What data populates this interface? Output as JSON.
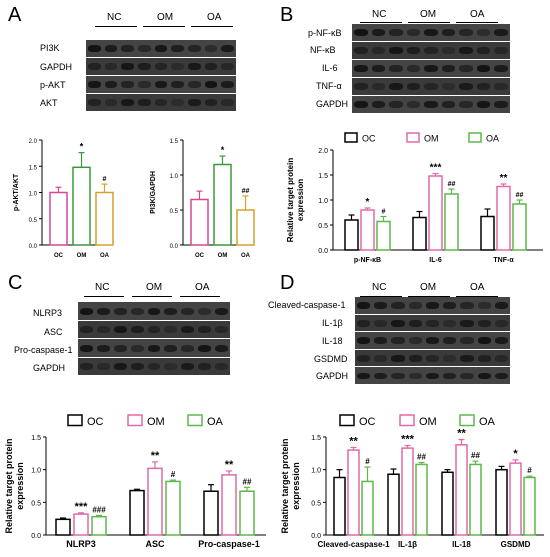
{
  "panels": {
    "A": {
      "letter": "A",
      "groups": [
        "NC",
        "OM",
        "OA"
      ],
      "rows": [
        "PI3K",
        "GAPDH",
        "p-AKT",
        "AKT"
      ]
    },
    "B": {
      "letter": "B",
      "groups": [
        "NC",
        "OM",
        "OA"
      ],
      "rows": [
        "p-NF-κB",
        "NF-κB",
        "IL-6",
        "TNF-α",
        "GAPDH"
      ]
    },
    "C": {
      "letter": "C",
      "groups": [
        "NC",
        "OM",
        "OA"
      ],
      "rows": [
        "NLRP3",
        "ASC",
        "Pro-caspase-1",
        "GAPDH"
      ]
    },
    "D": {
      "letter": "D",
      "groups": [
        "NC",
        "OM",
        "OA"
      ],
      "rows": [
        "Cleaved-caspase-1",
        "IL-1β",
        "IL-18",
        "GSDMD",
        "GAPDH"
      ]
    }
  },
  "chart_data": [
    {
      "id": "A1",
      "type": "bar",
      "categories": [
        "OC",
        "OM",
        "OA"
      ],
      "values": [
        1.0,
        1.48,
        1.0
      ],
      "errors": [
        0.1,
        0.28,
        0.16
      ],
      "significance": [
        "",
        "*",
        "#"
      ],
      "colors": [
        "#d14b8f",
        "#3a9a3a",
        "#d4a12a"
      ],
      "ylabel": "p-AKT/AKT",
      "ylim": [
        0,
        2.0
      ],
      "yticks": [
        "0.0",
        "0.5",
        "1.0",
        "1.5",
        "2.0"
      ]
    },
    {
      "id": "A2",
      "type": "bar",
      "categories": [
        "OC",
        "OM",
        "OA"
      ],
      "values": [
        0.65,
        1.15,
        0.5
      ],
      "errors": [
        0.12,
        0.12,
        0.2
      ],
      "significance": [
        "",
        "*",
        "##"
      ],
      "colors": [
        "#d14b8f",
        "#3a9a3a",
        "#d4a12a"
      ],
      "ylabel": "PI3K/GAPDH",
      "ylim": [
        0,
        1.5
      ],
      "yticks": [
        "0.0",
        "0.5",
        "1.0",
        "1.5"
      ]
    },
    {
      "id": "B",
      "type": "bar",
      "categories": [
        "p-NF-κB",
        "IL-6",
        "TNF-α"
      ],
      "series": [
        {
          "name": "OC",
          "color": "#000000",
          "values": [
            0.6,
            0.65,
            0.67
          ],
          "errors": [
            0.1,
            0.12,
            0.15
          ],
          "significance": [
            "",
            "",
            ""
          ]
        },
        {
          "name": "OM",
          "color": "#e06aa8",
          "values": [
            0.8,
            1.48,
            1.27
          ],
          "errors": [
            0.04,
            0.05,
            0.05
          ],
          "significance": [
            "*",
            "***",
            "**"
          ]
        },
        {
          "name": "OA",
          "color": "#5db84a",
          "values": [
            0.57,
            1.12,
            0.92
          ],
          "errors": [
            0.1,
            0.1,
            0.08
          ],
          "significance": [
            "#",
            "##",
            "##"
          ]
        }
      ],
      "ylabel": "Relative target protein expression",
      "ylim": [
        0,
        2.0
      ],
      "yticks": [
        "0.0",
        "0.5",
        "1.0",
        "1.5",
        "2.0"
      ]
    },
    {
      "id": "C",
      "type": "bar",
      "categories": [
        "NLRP3",
        "ASC",
        "Pro-caspase-1"
      ],
      "series": [
        {
          "name": "OC",
          "color": "#000000",
          "values": [
            0.24,
            0.68,
            0.67
          ],
          "errors": [
            0.02,
            0.02,
            0.1
          ],
          "significance": [
            "",
            "",
            ""
          ]
        },
        {
          "name": "OM",
          "color": "#e06aa8",
          "values": [
            0.32,
            1.02,
            0.92
          ],
          "errors": [
            0.02,
            0.1,
            0.06
          ],
          "significance": [
            "***",
            "**",
            "**"
          ]
        },
        {
          "name": "OA",
          "color": "#5db84a",
          "values": [
            0.28,
            0.82,
            0.67
          ],
          "errors": [
            0.02,
            0.02,
            0.06
          ],
          "significance": [
            "###",
            "#",
            "##"
          ]
        }
      ],
      "ylabel": "Relative target protein expression",
      "ylim": [
        0,
        1.5
      ],
      "yticks": [
        "0.0",
        "0.5",
        "1.0",
        "1.5"
      ]
    },
    {
      "id": "D",
      "type": "bar",
      "categories": [
        "Cleaved-caspase-1",
        "IL-1β",
        "IL-18",
        "GSDMD"
      ],
      "series": [
        {
          "name": "OC",
          "color": "#000000",
          "values": [
            0.88,
            0.93,
            0.96,
            1.0
          ],
          "errors": [
            0.12,
            0.08,
            0.04,
            0.05
          ],
          "significance": [
            "",
            "",
            "",
            ""
          ]
        },
        {
          "name": "OM",
          "color": "#e06aa8",
          "values": [
            1.3,
            1.33,
            1.38,
            1.1
          ],
          "errors": [
            0.04,
            0.04,
            0.08,
            0.05
          ],
          "significance": [
            "**",
            "***",
            "**",
            "*"
          ]
        },
        {
          "name": "OA",
          "color": "#5db84a",
          "values": [
            0.82,
            1.08,
            1.08,
            0.88
          ],
          "errors": [
            0.22,
            0.03,
            0.05,
            0.02
          ],
          "significance": [
            "#",
            "##",
            "##",
            "#"
          ]
        }
      ],
      "ylabel": "Relative target protein expression",
      "ylim": [
        0,
        1.5
      ],
      "yticks": [
        "0.0",
        "0.5",
        "1.0",
        "1.5"
      ]
    }
  ]
}
